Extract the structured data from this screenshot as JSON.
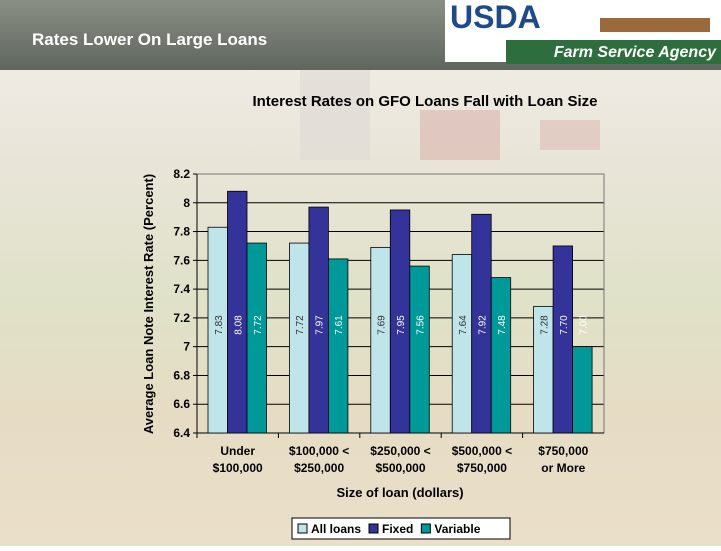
{
  "header": {
    "title": "Rates Lower On Large Loans"
  },
  "logo": {
    "text": "USDA",
    "subtitle": "Farm Service Agency"
  },
  "chart_data": {
    "type": "bar",
    "title": "Interest Rates on GFO Loans Fall with Loan Size",
    "x_label": "Size of loan (dollars)",
    "y_label": "Average Loan Note Interest Rate (Percent)",
    "categories": [
      [
        "Under",
        "$100,000"
      ],
      [
        "$100,000 <",
        "$250,000"
      ],
      [
        "$250,000 <",
        "$500,000"
      ],
      [
        "$500,000 <",
        "$750,000"
      ],
      [
        "$750,000",
        "or More"
      ]
    ],
    "series": [
      {
        "name": "All loans",
        "color": "#bfe4ea",
        "values": [
          7.83,
          7.72,
          7.69,
          7.64,
          7.28
        ],
        "value_labels": [
          "7.83",
          "7.72",
          "7.69",
          "7.64",
          "7.28"
        ]
      },
      {
        "name": "Fixed",
        "color": "#333399",
        "values": [
          8.08,
          7.97,
          7.95,
          7.92,
          7.7
        ],
        "value_labels": [
          "8.08",
          "7.97",
          "7.95",
          "7.92",
          "7.70"
        ]
      },
      {
        "name": "Variable",
        "color": "#009999",
        "values": [
          7.72,
          7.61,
          7.56,
          7.48,
          7.0
        ],
        "value_labels": [
          "7.72",
          "7.61",
          "7.56",
          "7.48",
          "7.00"
        ]
      }
    ],
    "ylim": [
      6.4,
      8.2
    ],
    "yticks": [
      6.4,
      6.6,
      6.8,
      7,
      7.2,
      7.4,
      7.6,
      7.8,
      8,
      8.2
    ],
    "grid": true,
    "legend": "bottom"
  }
}
